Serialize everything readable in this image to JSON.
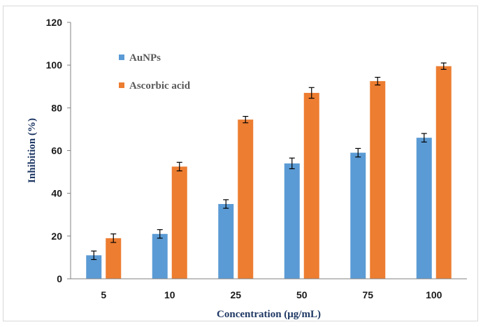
{
  "chart_data": {
    "type": "bar",
    "title": "",
    "xlabel": "Concentration (μg/mL)",
    "ylabel": "Inhibition (%)",
    "ylim": [
      0,
      120
    ],
    "yticks": [
      0,
      20,
      40,
      60,
      80,
      100,
      120
    ],
    "grid": false,
    "legend_position": "top-left",
    "categories": [
      "5",
      "10",
      "25",
      "50",
      "75",
      "100"
    ],
    "series": [
      {
        "name": "AuNPs",
        "color": "#5b9bd5",
        "values": [
          11,
          21,
          35,
          54,
          59,
          66
        ],
        "errors": [
          2,
          2,
          2,
          2.5,
          2,
          2
        ]
      },
      {
        "name": "Ascorbic acid",
        "color": "#ed7d31",
        "values": [
          19,
          52.5,
          74.5,
          87,
          92.5,
          99.5
        ],
        "errors": [
          2,
          2,
          1.5,
          2.5,
          1.8,
          1.5
        ]
      }
    ]
  }
}
